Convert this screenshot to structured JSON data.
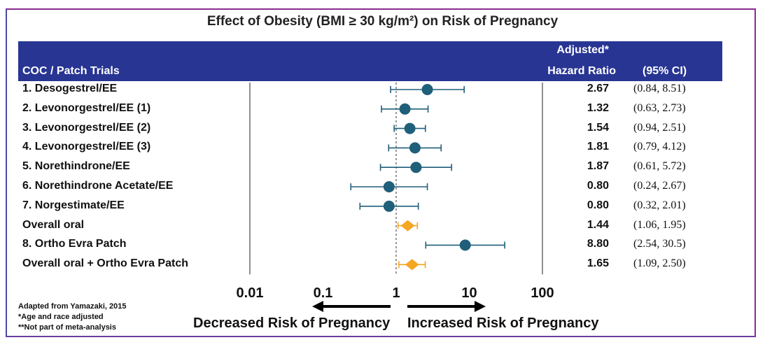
{
  "chart_data": {
    "type": "forest",
    "title": "Effect of Obesity (BMI ≥ 30 kg/m²) on Risk of Pregnancy",
    "header": {
      "label_col": "COC / Patch Trials",
      "hr_line1": "Adjusted*",
      "hr_line2": "Hazard Ratio",
      "ci_col": "(95% CI)"
    },
    "scale": "log",
    "xlim": [
      0.01,
      100
    ],
    "ticks": [
      "0.01",
      "0.1",
      "1",
      "10",
      "100"
    ],
    "tick_values": [
      0.01,
      0.1,
      1,
      10,
      100
    ],
    "rows": [
      {
        "label": "1. Desogestrel/EE",
        "hr": 2.67,
        "lo": 0.84,
        "hi": 8.51,
        "hr_text": "2.67",
        "ci_text": "(0.84, 8.51)",
        "marker": "circle"
      },
      {
        "label": "2. Levonorgestrel/EE  (1)",
        "hr": 1.32,
        "lo": 0.63,
        "hi": 2.73,
        "hr_text": "1.32",
        "ci_text": "(0.63, 2.73)",
        "marker": "circle"
      },
      {
        "label": "3. Levonorgestrel/EE  (2)",
        "hr": 1.54,
        "lo": 0.94,
        "hi": 2.51,
        "hr_text": "1.54",
        "ci_text": "(0.94, 2.51)",
        "marker": "circle"
      },
      {
        "label": "4. Levonorgestrel/EE  (3)",
        "hr": 1.81,
        "lo": 0.79,
        "hi": 4.12,
        "hr_text": "1.81",
        "ci_text": "(0.79, 4.12)",
        "marker": "circle"
      },
      {
        "label": "5. Norethindrone/EE",
        "hr": 1.87,
        "lo": 0.61,
        "hi": 5.72,
        "hr_text": "1.87",
        "ci_text": "(0.61, 5.72)",
        "marker": "circle"
      },
      {
        "label": "6. Norethindrone  Acetate/EE",
        "hr": 0.8,
        "lo": 0.24,
        "hi": 2.67,
        "hr_text": "0.80",
        "ci_text": "(0.24, 2.67)",
        "marker": "circle"
      },
      {
        "label": "7. Norgestimate/EE",
        "hr": 0.8,
        "lo": 0.32,
        "hi": 2.01,
        "hr_text": "0.80",
        "ci_text": "(0.32, 2.01)",
        "marker": "circle"
      },
      {
        "label": "Overall oral",
        "hr": 1.44,
        "lo": 1.06,
        "hi": 1.95,
        "hr_text": "1.44",
        "ci_text": "(1.06, 1.95)",
        "marker": "diamond"
      },
      {
        "label": "8. Ortho  Evra Patch",
        "hr": 8.8,
        "lo": 2.54,
        "hi": 30.5,
        "hr_text": "8.80",
        "ci_text": "(2.54, 30.5)",
        "marker": "circle"
      },
      {
        "label": "Overall oral + Ortho  Evra Patch",
        "hr": 1.65,
        "lo": 1.09,
        "hi": 2.5,
        "hr_text": "1.65",
        "ci_text": "(1.09, 2.50)",
        "marker": "diamond"
      }
    ],
    "xlabel_left": "Decreased Risk of Pregnancy",
    "xlabel_right": "Increased Risk of Pregnancy",
    "colors": {
      "circle": "#1f5f7a",
      "diamond": "#f5a623",
      "header_bg": "#283593"
    }
  },
  "footnotes": {
    "source": "Adapted from Yamazaki, 2015",
    "note1": "*Age and race adjusted",
    "note2": "**Not part of meta-analysis"
  }
}
